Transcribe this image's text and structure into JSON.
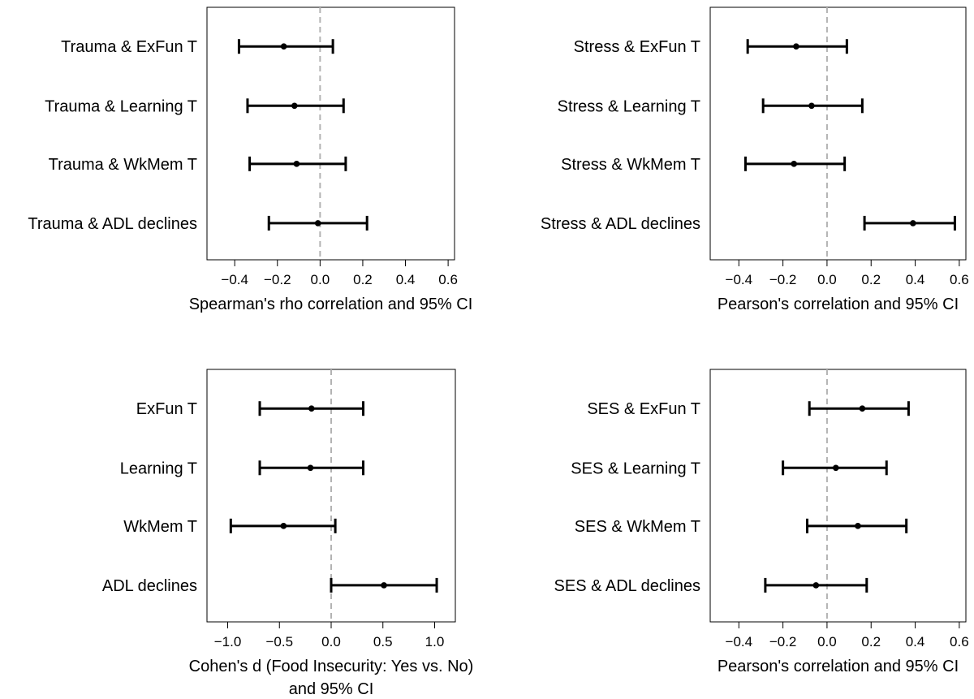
{
  "chart_data": [
    {
      "type": "forest",
      "xlabel": "Spearman's rho correlation and 95% CI",
      "xlim": [
        -0.53,
        0.63
      ],
      "xticks": [
        -0.4,
        -0.2,
        0.0,
        0.2,
        0.4,
        0.6
      ],
      "xtick_labels": [
        "−0.4",
        "−0.2",
        "0.0",
        "0.2",
        "0.4",
        "0.6"
      ],
      "reference_line": 0,
      "grid": false,
      "rows": [
        {
          "label": "Trauma & ExFun T",
          "estimate": -0.17,
          "lower": -0.38,
          "upper": 0.06
        },
        {
          "label": "Trauma & Learning T",
          "estimate": -0.12,
          "lower": -0.34,
          "upper": 0.11
        },
        {
          "label": "Trauma & WkMem T",
          "estimate": -0.11,
          "lower": -0.33,
          "upper": 0.12
        },
        {
          "label": "Trauma & ADL declines",
          "estimate": -0.01,
          "lower": -0.24,
          "upper": 0.22
        }
      ]
    },
    {
      "type": "forest",
      "xlabel": "Pearson's correlation and 95% CI",
      "xlim": [
        -0.53,
        0.63
      ],
      "xticks": [
        -0.4,
        -0.2,
        0.0,
        0.2,
        0.4,
        0.6
      ],
      "xtick_labels": [
        "−0.4",
        "−0.2",
        "0.0",
        "0.2",
        "0.4",
        "0.6"
      ],
      "reference_line": 0,
      "grid": false,
      "rows": [
        {
          "label": "Stress & ExFun T",
          "estimate": -0.14,
          "lower": -0.36,
          "upper": 0.09
        },
        {
          "label": "Stress & Learning T",
          "estimate": -0.07,
          "lower": -0.29,
          "upper": 0.16
        },
        {
          "label": "Stress & WkMem T",
          "estimate": -0.15,
          "lower": -0.37,
          "upper": 0.08
        },
        {
          "label": "Stress & ADL declines",
          "estimate": 0.39,
          "lower": 0.17,
          "upper": 0.58
        }
      ]
    },
    {
      "type": "forest",
      "xlabel": "Cohen's d (Food Insecurity: Yes vs. No)",
      "xlabel_line2": "and 95% CI",
      "xlim": [
        -1.2,
        1.2
      ],
      "xticks": [
        -1.0,
        -0.5,
        0.0,
        0.5,
        1.0
      ],
      "xtick_labels": [
        "−1.0",
        "−0.5",
        "0.0",
        "0.5",
        "1.0"
      ],
      "reference_line": 0,
      "grid": false,
      "rows": [
        {
          "label": "ExFun T",
          "estimate": -0.19,
          "lower": -0.69,
          "upper": 0.31
        },
        {
          "label": "Learning T",
          "estimate": -0.2,
          "lower": -0.69,
          "upper": 0.31
        },
        {
          "label": "WkMem T",
          "estimate": -0.46,
          "lower": -0.97,
          "upper": 0.04
        },
        {
          "label": "ADL declines",
          "estimate": 0.51,
          "lower": 0.0,
          "upper": 1.02
        }
      ]
    },
    {
      "type": "forest",
      "xlabel": "Pearson's correlation and 95% CI",
      "xlim": [
        -0.53,
        0.63
      ],
      "xticks": [
        -0.4,
        -0.2,
        0.0,
        0.2,
        0.4,
        0.6
      ],
      "xtick_labels": [
        "−0.4",
        "−0.2",
        "0.0",
        "0.2",
        "0.4",
        "0.6"
      ],
      "reference_line": 0,
      "grid": false,
      "rows": [
        {
          "label": "SES & ExFun T",
          "estimate": 0.16,
          "lower": -0.08,
          "upper": 0.37
        },
        {
          "label": "SES & Learning T",
          "estimate": 0.04,
          "lower": -0.2,
          "upper": 0.27
        },
        {
          "label": "SES & WkMem T",
          "estimate": 0.14,
          "lower": -0.09,
          "upper": 0.36
        },
        {
          "label": "SES & ADL declines",
          "estimate": -0.05,
          "lower": -0.28,
          "upper": 0.18
        }
      ]
    }
  ],
  "colors": {
    "interval": "#000000",
    "point": "#000000",
    "reference_line": "#b3b3b3",
    "frame": "#000000"
  }
}
